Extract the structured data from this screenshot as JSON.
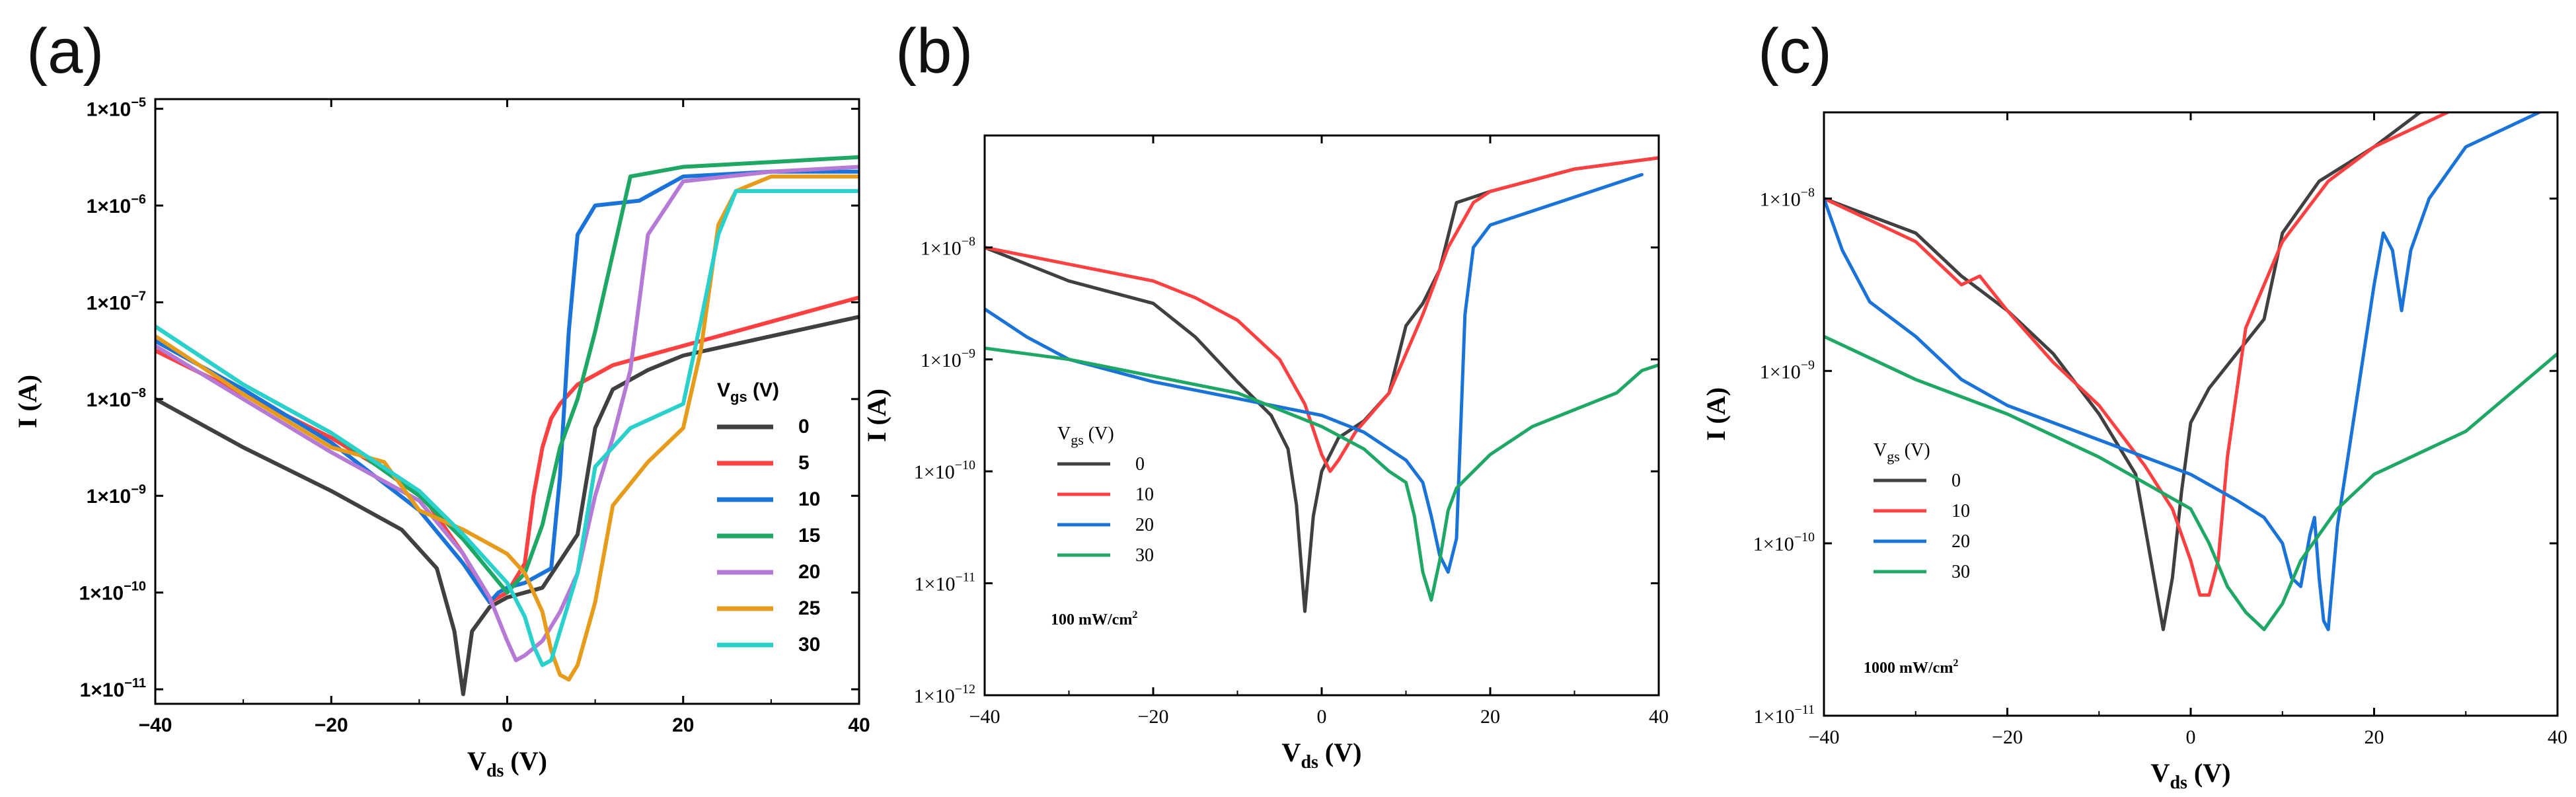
{
  "chart_data": [
    {
      "panel_label": "(a)",
      "type": "line",
      "title": "",
      "xlabel_main": "V",
      "xlabel_sub": "ds",
      "xlabel_unit": " (V)",
      "ylabel": "I (A)",
      "xlim": [
        -40,
        40
      ],
      "ylim_log10": [
        -11.15,
        -4.9
      ],
      "x_ticks": [
        -40,
        -20,
        0,
        20,
        40
      ],
      "x_tick_labels": [
        "−40",
        "−20",
        "0",
        "20",
        "40"
      ],
      "y_ticks_log10": [
        -11,
        -10,
        -9,
        -8,
        -7,
        -6,
        -5
      ],
      "y_tick_labels": [
        {
          "base": "1×10",
          "exp": "−11"
        },
        {
          "base": "1×10",
          "exp": "−10"
        },
        {
          "base": "1×10",
          "exp": "−9"
        },
        {
          "base": "1×10",
          "exp": "−8"
        },
        {
          "base": "1×10",
          "exp": "−7"
        },
        {
          "base": "1×10",
          "exp": "−6"
        },
        {
          "base": "1×10",
          "exp": "−5"
        }
      ],
      "legend_title_main": "V",
      "legend_title_sub": "gs",
      "legend_title_unit": " (V)",
      "legend_position": "lower-right",
      "annotation": "",
      "series": [
        {
          "name": "0",
          "color": "#404040",
          "x": [
            -40,
            -30,
            -20,
            -12,
            -8,
            -6,
            -5,
            -4,
            -2,
            0,
            4,
            8,
            10,
            12,
            16,
            20,
            30,
            40
          ],
          "y": [
            -8.0,
            -8.5,
            -8.95,
            -9.35,
            -9.75,
            -10.4,
            -11.05,
            -10.4,
            -10.15,
            -10.05,
            -9.95,
            -9.4,
            -8.3,
            -7.9,
            -7.7,
            -7.55,
            -7.35,
            -7.15
          ]
        },
        {
          "name": "5",
          "color": "#ff4040",
          "x": [
            -40,
            -30,
            -20,
            -10,
            -5,
            -2,
            0,
            2,
            3,
            4,
            5,
            6,
            8,
            12,
            20,
            30,
            40
          ],
          "y": [
            -7.5,
            -7.95,
            -8.4,
            -8.95,
            -9.6,
            -10.1,
            -10.0,
            -9.7,
            -9.0,
            -8.5,
            -8.2,
            -8.05,
            -7.85,
            -7.65,
            -7.45,
            -7.2,
            -6.95
          ]
        },
        {
          "name": "10",
          "color": "#1a73d9",
          "x": [
            -40,
            -30,
            -20,
            -10,
            -5,
            -2,
            -1,
            0,
            2,
            5,
            6,
            7,
            8,
            10,
            15,
            20,
            30,
            40
          ],
          "y": [
            -7.4,
            -7.9,
            -8.45,
            -9.15,
            -9.7,
            -10.1,
            -10.0,
            -9.95,
            -9.9,
            -9.75,
            -8.8,
            -7.3,
            -6.3,
            -6.0,
            -5.95,
            -5.7,
            -5.65,
            -5.65
          ]
        },
        {
          "name": "15",
          "color": "#1fa865",
          "x": [
            -40,
            -30,
            -20,
            -10,
            -5,
            0,
            2,
            4,
            6,
            8,
            10,
            12,
            14,
            20,
            30,
            40
          ],
          "y": [
            -7.25,
            -7.85,
            -8.35,
            -9.0,
            -9.45,
            -10.0,
            -9.8,
            -9.3,
            -8.5,
            -8.0,
            -7.3,
            -6.5,
            -5.7,
            -5.6,
            -5.55,
            -5.5
          ]
        },
        {
          "name": "20",
          "color": "#b57ad6",
          "x": [
            -40,
            -30,
            -20,
            -10,
            -5,
            -2,
            0,
            1,
            2,
            4,
            6,
            8,
            10,
            12,
            14,
            16,
            20,
            30,
            40
          ],
          "y": [
            -7.45,
            -8.0,
            -8.55,
            -9.05,
            -9.6,
            -10.05,
            -10.5,
            -10.7,
            -10.65,
            -10.5,
            -10.2,
            -9.8,
            -9.0,
            -8.4,
            -7.7,
            -6.3,
            -5.75,
            -5.65,
            -5.6
          ]
        },
        {
          "name": "25",
          "color": "#e69b1a",
          "x": [
            -40,
            -30,
            -20,
            -14,
            -10,
            -5,
            -2,
            0,
            2,
            4,
            5,
            6,
            7,
            8,
            10,
            12,
            16,
            20,
            22,
            24,
            26,
            30,
            40
          ],
          "y": [
            -7.35,
            -7.95,
            -8.5,
            -8.65,
            -9.15,
            -9.35,
            -9.5,
            -9.6,
            -9.8,
            -10.2,
            -10.6,
            -10.85,
            -10.9,
            -10.75,
            -10.1,
            -9.1,
            -8.65,
            -8.3,
            -7.5,
            -6.2,
            -5.85,
            -5.7,
            -5.7
          ]
        },
        {
          "name": "30",
          "color": "#2ad1cc",
          "x": [
            -40,
            -30,
            -20,
            -10,
            -5,
            0,
            2,
            3,
            4,
            5,
            6,
            8,
            10,
            14,
            20,
            22,
            24,
            26,
            30,
            40
          ],
          "y": [
            -7.25,
            -7.85,
            -8.35,
            -8.95,
            -9.4,
            -9.9,
            -10.25,
            -10.55,
            -10.75,
            -10.7,
            -10.4,
            -9.8,
            -8.7,
            -8.3,
            -8.05,
            -7.2,
            -6.3,
            -5.85,
            -5.85,
            -5.85
          ]
        }
      ]
    },
    {
      "panel_label": "(b)",
      "type": "line",
      "title": "",
      "xlabel_main": "V",
      "xlabel_sub": "ds",
      "xlabel_unit": " (V)",
      "ylabel": "I (A)",
      "xlim": [
        -40,
        40
      ],
      "ylim_log10": [
        -12,
        -7.0
      ],
      "x_ticks": [
        -40,
        -20,
        0,
        20,
        40
      ],
      "x_tick_labels": [
        "−40",
        "−20",
        "0",
        "20",
        "40"
      ],
      "y_ticks_log10": [
        -12,
        -11,
        -10,
        -9,
        -8
      ],
      "y_tick_labels": [
        {
          "base": "1×10",
          "exp": "−12"
        },
        {
          "base": "1×10",
          "exp": "−11"
        },
        {
          "base": "1×10",
          "exp": "−10"
        },
        {
          "base": "1×10",
          "exp": "−9"
        },
        {
          "base": "1×10",
          "exp": "−8"
        }
      ],
      "legend_title_main": "V",
      "legend_title_sub": "gs",
      "legend_title_unit": " (V)",
      "legend_position": "middle-left",
      "annotation": "100 mW/cm",
      "annotation_sup": "2",
      "series": [
        {
          "name": "0",
          "color": "#404040",
          "x": [
            -40,
            -30,
            -20,
            -15,
            -10,
            -6,
            -4,
            -3,
            -2,
            -1,
            0,
            2,
            5,
            8,
            10,
            12,
            14,
            16,
            20,
            30,
            40
          ],
          "y": [
            -8.0,
            -8.3,
            -8.5,
            -8.8,
            -9.2,
            -9.5,
            -9.8,
            -10.3,
            -11.25,
            -10.4,
            -10.0,
            -9.7,
            -9.55,
            -9.3,
            -8.7,
            -8.5,
            -8.2,
            -7.6,
            -7.5,
            -7.3,
            -7.2
          ]
        },
        {
          "name": "10",
          "color": "#ff4040",
          "x": [
            -40,
            -30,
            -20,
            -15,
            -10,
            -5,
            -2,
            0,
            1,
            2,
            4,
            8,
            12,
            15,
            18,
            20,
            30,
            40
          ],
          "y": [
            -8.0,
            -8.15,
            -8.3,
            -8.45,
            -8.65,
            -9.0,
            -9.4,
            -9.85,
            -10.0,
            -9.9,
            -9.65,
            -9.3,
            -8.6,
            -8.0,
            -7.6,
            -7.5,
            -7.3,
            -7.2
          ]
        },
        {
          "name": "20",
          "color": "#1a73d9",
          "x": [
            -40,
            -35,
            -30,
            -20,
            -10,
            0,
            5,
            10,
            12,
            13,
            14,
            15,
            16,
            17,
            18,
            20,
            30,
            38
          ],
          "y": [
            -8.55,
            -8.8,
            -9.0,
            -9.2,
            -9.35,
            -9.5,
            -9.65,
            -9.9,
            -10.1,
            -10.4,
            -10.75,
            -10.9,
            -10.6,
            -8.6,
            -8.0,
            -7.8,
            -7.55,
            -7.35
          ]
        },
        {
          "name": "30",
          "color": "#1fa865",
          "x": [
            -40,
            -30,
            -20,
            -10,
            0,
            5,
            8,
            10,
            11,
            12,
            13,
            14,
            15,
            16,
            18,
            20,
            25,
            30,
            35,
            38,
            40
          ],
          "y": [
            -8.9,
            -9.0,
            -9.15,
            -9.3,
            -9.6,
            -9.8,
            -10.0,
            -10.1,
            -10.4,
            -10.9,
            -11.15,
            -10.8,
            -10.35,
            -10.15,
            -10.0,
            -9.85,
            -9.6,
            -9.45,
            -9.3,
            -9.1,
            -9.05
          ]
        }
      ]
    },
    {
      "panel_label": "(c)",
      "type": "line",
      "title": "",
      "xlabel_main": "V",
      "xlabel_sub": "ds",
      "xlabel_unit": " (V)",
      "ylabel": "I (A)",
      "xlim": [
        -40,
        40
      ],
      "ylim_log10": [
        -11,
        -7.5
      ],
      "x_ticks": [
        -40,
        -20,
        0,
        20,
        40
      ],
      "x_tick_labels": [
        "−40",
        "−20",
        "0",
        "20",
        "40"
      ],
      "y_ticks_log10": [
        -11,
        -10,
        -9,
        -8
      ],
      "y_tick_labels": [
        {
          "base": "1×10",
          "exp": "−11"
        },
        {
          "base": "1×10",
          "exp": "−10"
        },
        {
          "base": "1×10",
          "exp": "−9"
        },
        {
          "base": "1×10",
          "exp": "−8"
        }
      ],
      "legend_title_main": "V",
      "legend_title_sub": "gs",
      "legend_title_unit": " (V)",
      "legend_position": "middle-left",
      "annotation": "1000 mW/cm",
      "annotation_sup": "2",
      "series": [
        {
          "name": "0",
          "color": "#404040",
          "x": [
            -40,
            -30,
            -25,
            -20,
            -15,
            -10,
            -6,
            -4,
            -3,
            -2,
            -1,
            0,
            2,
            5,
            8,
            10,
            14,
            20,
            25,
            30,
            40
          ],
          "y": [
            -8.0,
            -8.2,
            -8.45,
            -8.65,
            -8.9,
            -9.25,
            -9.6,
            -10.2,
            -10.5,
            -10.2,
            -9.7,
            -9.3,
            -9.1,
            -8.9,
            -8.7,
            -8.2,
            -7.9,
            -7.7,
            -7.5,
            -7.45,
            -7.4
          ]
        },
        {
          "name": "10",
          "color": "#ff4040",
          "x": [
            -40,
            -30,
            -25,
            -23,
            -20,
            -15,
            -10,
            -5,
            -2,
            0,
            1,
            2,
            3,
            4,
            6,
            10,
            15,
            20,
            30,
            40
          ],
          "y": [
            -8.0,
            -8.25,
            -8.5,
            -8.45,
            -8.65,
            -8.95,
            -9.2,
            -9.55,
            -9.8,
            -10.1,
            -10.3,
            -10.3,
            -10.1,
            -9.5,
            -8.75,
            -8.25,
            -7.9,
            -7.7,
            -7.45,
            -7.4
          ]
        },
        {
          "name": "20",
          "color": "#1a73d9",
          "x": [
            -40,
            -38,
            -35,
            -30,
            -25,
            -20,
            -10,
            0,
            5,
            8,
            10,
            11,
            12,
            13,
            13.5,
            14,
            14.5,
            15,
            16,
            18,
            20,
            21,
            22,
            23,
            24,
            26,
            30,
            38
          ],
          "y": [
            -8.0,
            -8.3,
            -8.6,
            -8.8,
            -9.05,
            -9.2,
            -9.4,
            -9.6,
            -9.75,
            -9.85,
            -10.0,
            -10.2,
            -10.25,
            -9.95,
            -9.85,
            -10.2,
            -10.45,
            -10.5,
            -9.9,
            -9.2,
            -8.5,
            -8.2,
            -8.3,
            -8.65,
            -8.3,
            -8.0,
            -7.7,
            -7.5
          ]
        },
        {
          "name": "30",
          "color": "#1fa865",
          "x": [
            -40,
            -30,
            -20,
            -10,
            0,
            2,
            4,
            6,
            8,
            10,
            12,
            14,
            16,
            20,
            30,
            40
          ],
          "y": [
            -8.8,
            -9.05,
            -9.25,
            -9.5,
            -9.8,
            -10.0,
            -10.25,
            -10.4,
            -10.5,
            -10.35,
            -10.1,
            -9.95,
            -9.8,
            -9.6,
            -9.35,
            -8.9
          ]
        }
      ]
    }
  ]
}
